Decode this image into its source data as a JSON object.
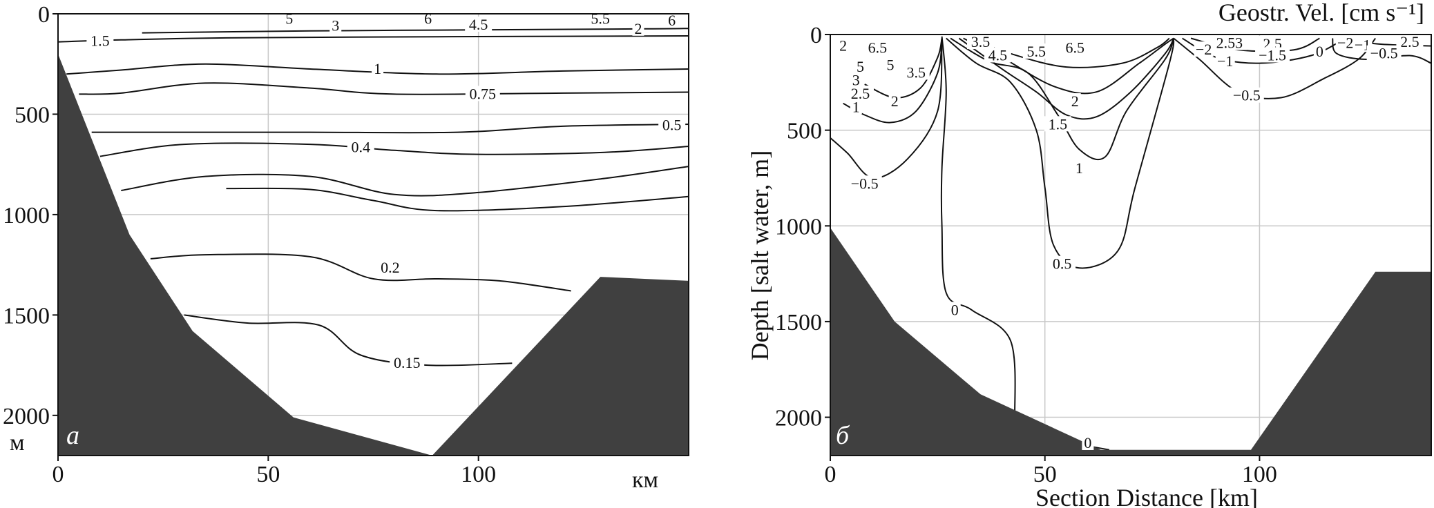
{
  "chart_data": [
    {
      "type": "contour",
      "panel_label": "a",
      "title": "",
      "xlabel": "",
      "x_unit": "км",
      "ylabel": "",
      "y_unit": "м",
      "xlim": [
        0,
        150
      ],
      "ylim": [
        2200,
        0
      ],
      "xticks": [
        0,
        50,
        100
      ],
      "yticks": [
        0,
        500,
        1000,
        1500,
        2000
      ],
      "grid": true,
      "bottom_profile": [
        [
          0,
          200
        ],
        [
          17,
          1100
        ],
        [
          32,
          1580
        ],
        [
          56,
          2010
        ],
        [
          89,
          2200
        ],
        [
          129,
          1310
        ],
        [
          150,
          1330
        ]
      ],
      "isolines": [
        {
          "label": "1.5",
          "points": [
            [
              0,
              140
            ],
            [
              15,
              130
            ],
            [
              40,
              120
            ],
            [
              80,
              115
            ],
            [
              120,
              112
            ],
            [
              150,
              110
            ]
          ]
        },
        {
          "label": "2",
          "points": [
            [
              20,
              95
            ],
            [
              60,
              85
            ],
            [
              100,
              80
            ],
            [
              140,
              75
            ],
            [
              150,
              73
            ]
          ]
        },
        {
          "label": "1",
          "points": [
            [
              2,
              300
            ],
            [
              15,
              280
            ],
            [
              35,
              250
            ],
            [
              60,
              275
            ],
            [
              90,
              300
            ],
            [
              120,
              285
            ],
            [
              150,
              275
            ]
          ]
        },
        {
          "label": "0.75",
          "points": [
            [
              5,
              400
            ],
            [
              15,
              395
            ],
            [
              35,
              345
            ],
            [
              60,
              370
            ],
            [
              80,
              400
            ],
            [
              120,
              395
            ],
            [
              150,
              390
            ]
          ]
        },
        {
          "label": "0.5",
          "points": [
            [
              8,
              590
            ],
            [
              30,
              590
            ],
            [
              60,
              590
            ],
            [
              95,
              590
            ],
            [
              120,
              560
            ],
            [
              150,
              550
            ]
          ]
        },
        {
          "label": "0.4",
          "points": [
            [
              10,
              710
            ],
            [
              30,
              650
            ],
            [
              60,
              650
            ],
            [
              80,
              680
            ],
            [
              100,
              700
            ],
            [
              130,
              690
            ],
            [
              150,
              660
            ]
          ]
        },
        {
          "label": "",
          "points": [
            [
              15,
              880
            ],
            [
              35,
              810
            ],
            [
              60,
              810
            ],
            [
              80,
              900
            ],
            [
              100,
              890
            ],
            [
              130,
              820
            ],
            [
              150,
              760
            ]
          ]
        },
        {
          "label": "",
          "points": [
            [
              40,
              870
            ],
            [
              60,
              875
            ],
            [
              75,
              930
            ],
            [
              90,
              980
            ],
            [
              120,
              960
            ],
            [
              150,
              910
            ]
          ]
        },
        {
          "label": "0.2",
          "points": [
            [
              22,
              1220
            ],
            [
              35,
              1200
            ],
            [
              60,
              1210
            ],
            [
              75,
              1320
            ],
            [
              90,
              1320
            ],
            [
              105,
              1330
            ],
            [
              122,
              1380
            ]
          ]
        },
        {
          "label": "0.15",
          "points": [
            [
              30,
              1500
            ],
            [
              45,
              1540
            ],
            [
              62,
              1550
            ],
            [
              72,
              1700
            ],
            [
              88,
              1750
            ],
            [
              108,
              1740
            ]
          ]
        }
      ],
      "contour_labels": [
        {
          "text": "5",
          "x": 55,
          "y": 25
        },
        {
          "text": "3",
          "x": 66,
          "y": 60
        },
        {
          "text": "6",
          "x": 88,
          "y": 25
        },
        {
          "text": "4.5",
          "x": 100,
          "y": 55
        },
        {
          "text": "5.5",
          "x": 129,
          "y": 25
        },
        {
          "text": "6",
          "x": 146,
          "y": 35
        },
        {
          "text": "1.5",
          "x": 10,
          "y": 135
        },
        {
          "text": "2",
          "x": 138,
          "y": 75
        },
        {
          "text": "1",
          "x": 76,
          "y": 275
        },
        {
          "text": "0.75",
          "x": 101,
          "y": 400
        },
        {
          "text": "0.5",
          "x": 146,
          "y": 555
        },
        {
          "text": "0.4",
          "x": 72,
          "y": 665
        },
        {
          "text": "0.2",
          "x": 79,
          "y": 1265
        },
        {
          "text": "0.15",
          "x": 83,
          "y": 1740
        }
      ]
    },
    {
      "type": "contour",
      "panel_label": "б",
      "title": "Geostr. Vel. [cm s⁻¹]",
      "xlabel": "Section Distance [km]",
      "ylabel": "Depth [salt water, m]",
      "xlim": [
        0,
        140
      ],
      "ylim": [
        2200,
        0
      ],
      "xticks": [
        0,
        50,
        100
      ],
      "yticks": [
        0,
        500,
        1000,
        1500,
        2000
      ],
      "grid": true,
      "bottom_profile": [
        [
          0,
          1010
        ],
        [
          15,
          1500
        ],
        [
          35,
          1880
        ],
        [
          63,
          2170
        ],
        [
          98,
          2170
        ],
        [
          127,
          1240
        ],
        [
          140,
          1240
        ]
      ],
      "isolines": [
        {
          "label": "0",
          "points": [
            [
              26,
              10
            ],
            [
              27,
              300
            ],
            [
              26,
              700
            ],
            [
              26,
              1000
            ],
            [
              27,
              1350
            ],
            [
              33,
              1440
            ],
            [
              42,
              1600
            ],
            [
              43,
              2000
            ]
          ]
        },
        {
          "label": "0",
          "points": [
            [
              60,
              2150
            ],
            [
              65,
              2170
            ]
          ]
        },
        {
          "label": "0.5",
          "points": [
            [
              27,
              20
            ],
            [
              34,
              150
            ],
            [
              42,
              250
            ],
            [
              48,
              500
            ],
            [
              50,
              800
            ],
            [
              52,
              1100
            ],
            [
              58,
              1220
            ],
            [
              67,
              1130
            ],
            [
              71,
              800
            ],
            [
              79,
              150
            ],
            [
              80,
              20
            ]
          ]
        },
        {
          "label": "1",
          "points": [
            [
              28,
              20
            ],
            [
              37,
              140
            ],
            [
              46,
              200
            ],
            [
              53,
              420
            ],
            [
              58,
              600
            ],
            [
              64,
              640
            ],
            [
              69,
              400
            ],
            [
              78,
              130
            ],
            [
              80,
              20
            ]
          ]
        },
        {
          "label": "1.5",
          "points": [
            [
              30,
              20
            ],
            [
              40,
              180
            ],
            [
              48,
              300
            ],
            [
              55,
              420
            ],
            [
              62,
              430
            ],
            [
              70,
              300
            ],
            [
              78,
              100
            ],
            [
              80,
              20
            ]
          ]
        },
        {
          "label": "2",
          "points": [
            [
              31,
              20
            ],
            [
              40,
              120
            ],
            [
              52,
              270
            ],
            [
              62,
              300
            ],
            [
              72,
              150
            ],
            [
              78,
              50
            ],
            [
              80,
              20
            ]
          ]
        },
        {
          "label": "",
          "points": [
            [
              33,
              20
            ],
            [
              42,
              100
            ],
            [
              55,
              170
            ],
            [
              68,
              150
            ],
            [
              76,
              70
            ],
            [
              79,
              20
            ]
          ]
        },
        {
          "label": "-0.5",
          "points": [
            [
              0,
              540
            ],
            [
              4,
              620
            ],
            [
              10,
              750
            ],
            [
              18,
              650
            ],
            [
              25,
              400
            ],
            [
              26,
              20
            ]
          ]
        },
        {
          "label": "-1",
          "points": [
            [
              3,
              360
            ],
            [
              8,
              420
            ],
            [
              14,
              460
            ],
            [
              20,
              400
            ],
            [
              25,
              200
            ],
            [
              26,
              20
            ]
          ]
        },
        {
          "label": "-2",
          "points": [
            [
              8,
              260
            ],
            [
              15,
              330
            ],
            [
              21,
              280
            ],
            [
              25,
              120
            ],
            [
              26,
              20
            ]
          ]
        },
        {
          "label": "-0.5",
          "points": [
            [
              80,
              20
            ],
            [
              86,
              130
            ],
            [
              95,
              300
            ],
            [
              105,
              330
            ],
            [
              115,
              230
            ],
            [
              123,
              130
            ],
            [
              127,
              20
            ]
          ]
        },
        {
          "label": "-1",
          "points": [
            [
              82,
              20
            ],
            [
              90,
              120
            ],
            [
              100,
              150
            ],
            [
              112,
              110
            ],
            [
              120,
              20
            ]
          ]
        },
        {
          "label": "-1.5",
          "points": [
            [
              84,
              20
            ],
            [
              95,
              80
            ],
            [
              108,
              80
            ],
            [
              114,
              20
            ]
          ]
        },
        {
          "label": "0.5",
          "points": [
            [
              118,
              20
            ],
            [
              128,
              50
            ],
            [
              140,
              60
            ]
          ]
        },
        {
          "label": "",
          "points": [
            [
              117,
              20
            ],
            [
              118,
              100
            ],
            [
              125,
              130
            ],
            [
              135,
              110
            ],
            [
              140,
              150
            ]
          ]
        }
      ],
      "contour_labels": [
        {
          "text": "2",
          "x": 3,
          "y": 60
        },
        {
          "text": "6.5",
          "x": 11,
          "y": 70
        },
        {
          "text": "5",
          "x": 14,
          "y": 160
        },
        {
          "text": "5",
          "x": 7,
          "y": 170
        },
        {
          "text": "3",
          "x": 6,
          "y": 240
        },
        {
          "text": "2.5",
          "x": 7,
          "y": 310
        },
        {
          "text": "3.5",
          "x": 20,
          "y": 200
        },
        {
          "text": "2",
          "x": 15,
          "y": 350
        },
        {
          "text": "1",
          "x": 6,
          "y": 380
        },
        {
          "text": "3.5",
          "x": 35,
          "y": 40
        },
        {
          "text": "4.5",
          "x": 39,
          "y": 110
        },
        {
          "text": "5.5",
          "x": 48,
          "y": 90
        },
        {
          "text": "6.5",
          "x": 57,
          "y": 70
        },
        {
          "text": "2",
          "x": 57,
          "y": 350
        },
        {
          "text": "1.5",
          "x": 53,
          "y": 470
        },
        {
          "text": "1",
          "x": 58,
          "y": 700
        },
        {
          "text": "0.5",
          "x": 54,
          "y": 1200
        },
        {
          "text": "-0.5",
          "x": 8,
          "y": 780
        },
        {
          "text": "0",
          "x": 29,
          "y": 1440
        },
        {
          "text": "0",
          "x": 60,
          "y": 2135
        },
        {
          "text": "-2",
          "x": 87,
          "y": 80
        },
        {
          "text": "2.53",
          "x": 93,
          "y": 45
        },
        {
          "text": "2.5",
          "x": 103,
          "y": 50
        },
        {
          "text": "-1",
          "x": 92,
          "y": 140
        },
        {
          "text": "-1.5",
          "x": 103,
          "y": 110
        },
        {
          "text": "0",
          "x": 114,
          "y": 90
        },
        {
          "text": "-2",
          "x": 120,
          "y": 45
        },
        {
          "text": "-1",
          "x": 124,
          "y": 55
        },
        {
          "text": "2.5",
          "x": 135,
          "y": 40
        },
        {
          "text": "-0.5",
          "x": 129,
          "y": 100
        },
        {
          "text": "-0.5",
          "x": 97,
          "y": 320
        }
      ]
    }
  ]
}
